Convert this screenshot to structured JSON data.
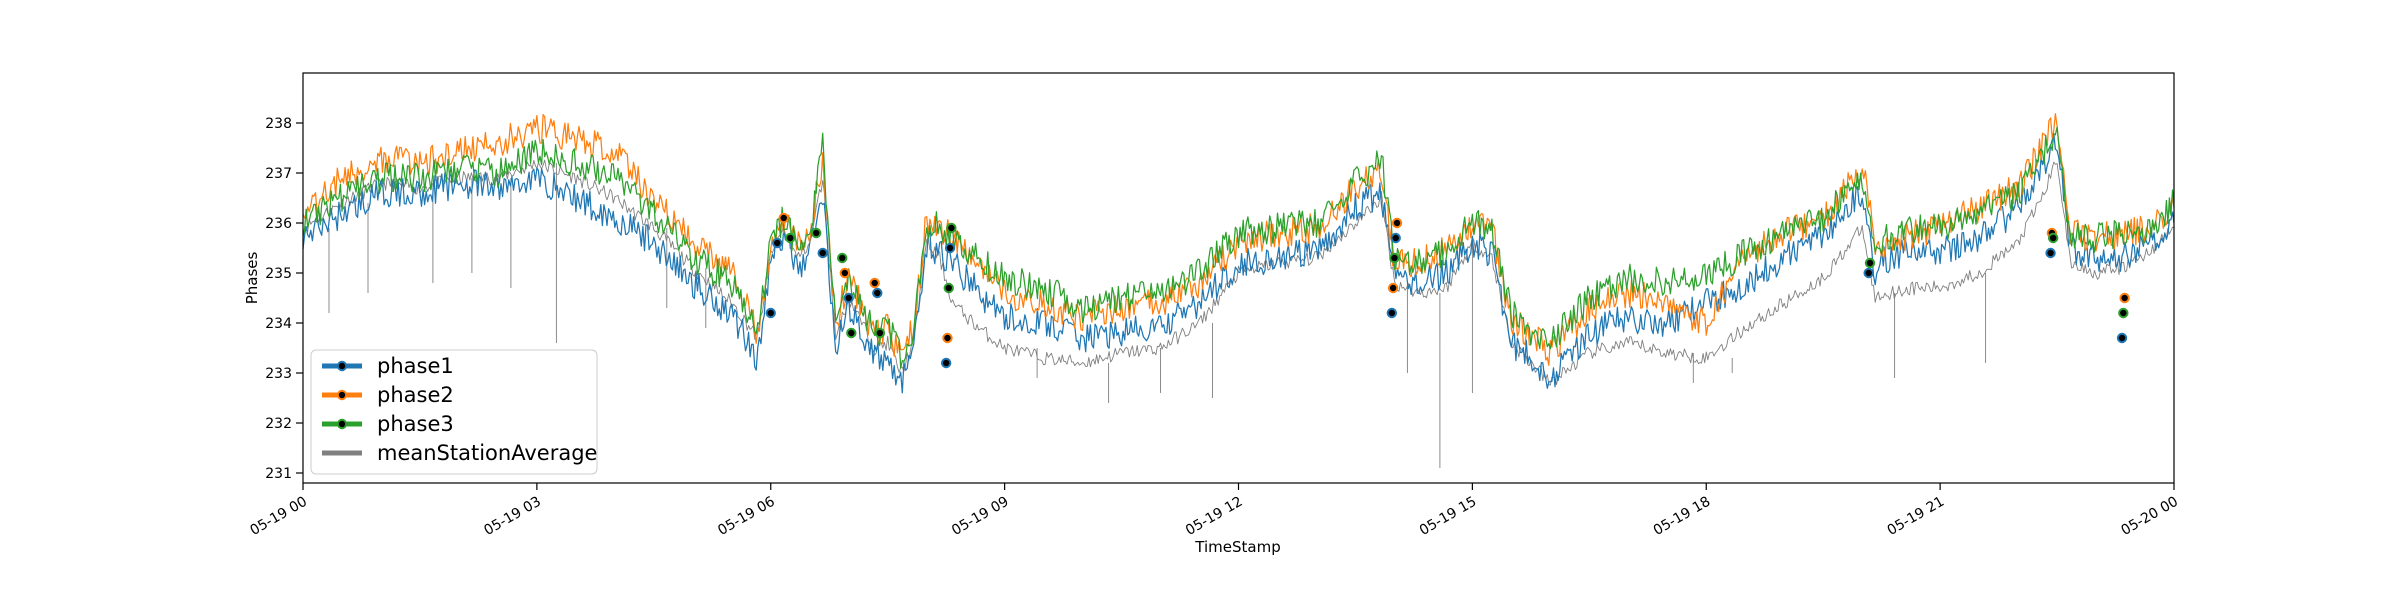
{
  "chart_data": {
    "type": "line",
    "title": "",
    "xlabel": "TimeStamp",
    "ylabel": "Phases",
    "xlim": [
      "05-19 00:00",
      "05-20 00:00"
    ],
    "ylim": [
      230.8,
      239.0
    ],
    "x_ticks": [
      {
        "hour": 0,
        "label": "05-19 00"
      },
      {
        "hour": 3,
        "label": "05-19 03"
      },
      {
        "hour": 6,
        "label": "05-19 06"
      },
      {
        "hour": 9,
        "label": "05-19 09"
      },
      {
        "hour": 12,
        "label": "05-19 12"
      },
      {
        "hour": 15,
        "label": "05-19 15"
      },
      {
        "hour": 18,
        "label": "05-19 18"
      },
      {
        "hour": 21,
        "label": "05-19 21"
      },
      {
        "hour": 24,
        "label": "05-20 00"
      }
    ],
    "y_ticks": [
      231,
      232,
      233,
      234,
      235,
      236,
      237,
      238
    ],
    "grid": false,
    "legend_position": "lower-left",
    "x": [
      "00:00",
      "00:30",
      "01:00",
      "01:30",
      "02:00",
      "02:30",
      "03:00",
      "03:30",
      "04:00",
      "04:30",
      "05:00",
      "05:30",
      "05:50",
      "06:00",
      "06:10",
      "06:20",
      "06:30",
      "06:40",
      "06:50",
      "07:00",
      "07:10",
      "07:20",
      "07:30",
      "07:40",
      "07:50",
      "08:00",
      "08:10",
      "08:20",
      "08:40",
      "09:00",
      "09:30",
      "10:00",
      "10:30",
      "11:00",
      "11:30",
      "12:00",
      "12:30",
      "13:00",
      "13:30",
      "13:50",
      "14:00",
      "14:20",
      "14:40",
      "15:00",
      "15:15",
      "15:30",
      "15:45",
      "16:00",
      "16:30",
      "17:00",
      "17:30",
      "18:00",
      "18:30",
      "19:00",
      "19:30",
      "20:00",
      "20:10",
      "20:20",
      "20:40",
      "21:00",
      "21:30",
      "22:00",
      "22:20",
      "22:30",
      "22:40",
      "23:00",
      "23:20",
      "23:40",
      "24:00"
    ],
    "series": [
      {
        "name": "phase1",
        "color": "#1f77b4",
        "marker": true,
        "values": [
          235.7,
          236.2,
          236.6,
          236.6,
          236.8,
          236.7,
          236.9,
          236.5,
          236.1,
          235.6,
          234.8,
          234.2,
          233.3,
          235.2,
          235.8,
          235.1,
          235.4,
          236.6,
          233.5,
          234.3,
          233.9,
          233.3,
          233.3,
          232.8,
          233.4,
          235.6,
          235.4,
          235.2,
          234.6,
          234.1,
          234.0,
          233.7,
          233.8,
          233.9,
          234.4,
          235.2,
          235.3,
          235.4,
          236.3,
          236.6,
          234.9,
          234.8,
          235.0,
          235.6,
          235.4,
          233.6,
          233.3,
          232.9,
          233.8,
          234.1,
          234.0,
          234.4,
          234.8,
          235.3,
          235.8,
          236.6,
          235.0,
          235.3,
          235.5,
          235.4,
          235.7,
          236.3,
          237.2,
          237.6,
          235.5,
          235.3,
          235.3,
          235.6,
          236.0
        ]
      },
      {
        "name": "phase2",
        "color": "#ff7f0e",
        "marker": true,
        "values": [
          236.2,
          236.9,
          237.3,
          237.2,
          237.4,
          237.6,
          237.9,
          237.7,
          237.4,
          236.5,
          235.6,
          235.0,
          233.8,
          235.6,
          236.1,
          235.6,
          235.9,
          237.3,
          234.0,
          234.9,
          234.3,
          233.8,
          233.9,
          233.3,
          233.9,
          236.1,
          235.9,
          235.7,
          235.1,
          234.6,
          234.4,
          234.1,
          234.3,
          234.4,
          234.8,
          235.6,
          235.8,
          235.9,
          236.7,
          237.1,
          235.2,
          235.2,
          235.5,
          236.0,
          235.9,
          234.0,
          233.8,
          233.4,
          234.3,
          234.6,
          234.4,
          234.0,
          235.3,
          235.8,
          236.1,
          237.2,
          235.6,
          235.6,
          235.8,
          235.9,
          236.3,
          236.7,
          237.6,
          238.1,
          235.8,
          235.7,
          235.8,
          235.9,
          236.3
        ]
      },
      {
        "name": "phase3",
        "color": "#2ca02c",
        "marker": true,
        "values": [
          236.0,
          236.5,
          236.9,
          236.9,
          237.1,
          237.0,
          237.4,
          237.2,
          236.9,
          236.2,
          235.3,
          234.8,
          233.8,
          235.6,
          236.1,
          235.5,
          235.8,
          237.5,
          234.0,
          234.8,
          234.3,
          233.8,
          233.9,
          233.4,
          233.9,
          236.0,
          235.9,
          235.7,
          235.3,
          234.9,
          234.7,
          234.3,
          234.5,
          234.6,
          235.0,
          235.8,
          235.9,
          236.0,
          236.8,
          237.3,
          235.3,
          235.2,
          235.4,
          236.0,
          235.9,
          234.2,
          233.8,
          233.6,
          234.5,
          234.9,
          234.8,
          234.9,
          235.4,
          235.8,
          236.1,
          237.0,
          235.6,
          235.7,
          235.9,
          235.9,
          236.2,
          236.6,
          237.4,
          237.9,
          235.7,
          235.7,
          235.8,
          235.9,
          236.4
        ]
      },
      {
        "name": "meanStationAverage",
        "color": "#808080",
        "marker": false,
        "values": [
          235.9,
          236.4,
          236.8,
          236.7,
          236.9,
          236.9,
          237.2,
          236.9,
          236.5,
          235.9,
          235.1,
          234.4,
          233.7,
          235.4,
          235.9,
          235.3,
          235.6,
          236.9,
          233.7,
          234.5,
          234.0,
          233.5,
          233.6,
          233.0,
          233.6,
          235.6,
          235.3,
          234.4,
          233.9,
          233.5,
          233.3,
          233.2,
          233.4,
          233.5,
          234.0,
          235.0,
          235.2,
          235.3,
          236.0,
          236.5,
          234.8,
          234.6,
          234.7,
          235.6,
          235.3,
          233.6,
          233.2,
          232.8,
          233.4,
          233.6,
          233.4,
          233.3,
          233.9,
          234.4,
          234.9,
          235.9,
          234.5,
          234.6,
          234.7,
          234.7,
          235.0,
          235.6,
          236.6,
          237.3,
          235.2,
          235.0,
          235.1,
          235.4,
          235.9
        ]
      }
    ],
    "dips": [
      {
        "time": "00:20",
        "value": 234.2
      },
      {
        "time": "00:50",
        "value": 234.6
      },
      {
        "time": "01:40",
        "value": 234.8
      },
      {
        "time": "02:10",
        "value": 235.0
      },
      {
        "time": "02:40",
        "value": 234.7
      },
      {
        "time": "03:15",
        "value": 233.6
      },
      {
        "time": "04:40",
        "value": 234.3
      },
      {
        "time": "05:10",
        "value": 233.9
      },
      {
        "time": "09:25",
        "value": 232.9
      },
      {
        "time": "10:20",
        "value": 232.4
      },
      {
        "time": "11:00",
        "value": 232.6
      },
      {
        "time": "11:40",
        "value": 232.5
      },
      {
        "time": "14:10",
        "value": 233.0
      },
      {
        "time": "14:35",
        "value": 231.1
      },
      {
        "time": "15:00",
        "value": 232.6
      },
      {
        "time": "17:50",
        "value": 232.8
      },
      {
        "time": "18:20",
        "value": 233.0
      },
      {
        "time": "20:25",
        "value": 232.9
      },
      {
        "time": "21:35",
        "value": 233.2
      }
    ],
    "marker_points": [
      {
        "series": "phase1",
        "time": "06:00",
        "value": 234.2
      },
      {
        "series": "phase1",
        "time": "06:05",
        "value": 235.6
      },
      {
        "series": "phase2",
        "time": "06:10",
        "value": 236.1
      },
      {
        "series": "phase3",
        "time": "06:15",
        "value": 235.7
      },
      {
        "series": "phase3",
        "time": "06:35",
        "value": 235.8
      },
      {
        "series": "phase1",
        "time": "06:40",
        "value": 235.4
      },
      {
        "series": "phase3",
        "time": "06:55",
        "value": 235.3
      },
      {
        "series": "phase2",
        "time": "06:57",
        "value": 235.0
      },
      {
        "series": "phase1",
        "time": "07:00",
        "value": 234.5
      },
      {
        "series": "phase3",
        "time": "07:02",
        "value": 233.8
      },
      {
        "series": "phase2",
        "time": "07:20",
        "value": 234.8
      },
      {
        "series": "phase1",
        "time": "07:22",
        "value": 234.6
      },
      {
        "series": "phase3",
        "time": "07:24",
        "value": 233.8
      },
      {
        "series": "phase1",
        "time": "08:15",
        "value": 233.2
      },
      {
        "series": "phase2",
        "time": "08:16",
        "value": 233.7
      },
      {
        "series": "phase3",
        "time": "08:17",
        "value": 234.7
      },
      {
        "series": "phase1",
        "time": "08:18",
        "value": 235.5
      },
      {
        "series": "phase3",
        "time": "08:19",
        "value": 235.9
      },
      {
        "series": "phase1",
        "time": "13:58",
        "value": 234.2
      },
      {
        "series": "phase2",
        "time": "13:59",
        "value": 234.7
      },
      {
        "series": "phase3",
        "time": "14:00",
        "value": 235.3
      },
      {
        "series": "phase1",
        "time": "14:01",
        "value": 235.7
      },
      {
        "series": "phase2",
        "time": "14:02",
        "value": 236.0
      },
      {
        "series": "phase1",
        "time": "20:05",
        "value": 235.0
      },
      {
        "series": "phase3",
        "time": "20:06",
        "value": 235.2
      },
      {
        "series": "phase1",
        "time": "22:25",
        "value": 235.4
      },
      {
        "series": "phase2",
        "time": "22:26",
        "value": 235.8
      },
      {
        "series": "phase3",
        "time": "22:27",
        "value": 235.7
      },
      {
        "series": "phase1",
        "time": "23:20",
        "value": 233.7
      },
      {
        "series": "phase3",
        "time": "23:21",
        "value": 234.2
      },
      {
        "series": "phase2",
        "time": "23:22",
        "value": 234.5
      }
    ]
  }
}
